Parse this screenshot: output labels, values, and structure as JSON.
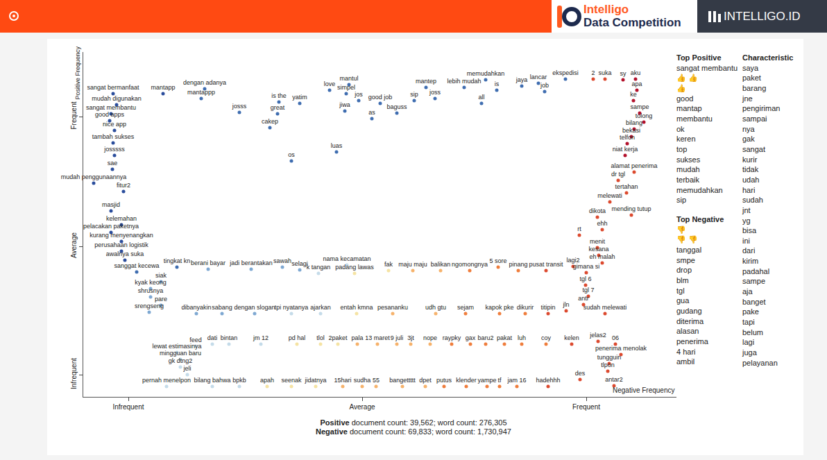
{
  "header": {
    "brand": [
      "Intelligo",
      "Data Competition"
    ],
    "site": "INTELLIGO.ID"
  },
  "chart_data": {
    "type": "scatter",
    "x_label": "Negative Frequency",
    "y_label": "Positive Frequency",
    "xlim": [
      0,
      855
    ],
    "ylim": [
      0,
      497
    ],
    "xticks": [
      {
        "value": 65,
        "label": "Infrequent"
      },
      {
        "value": 402,
        "label": "Average"
      },
      {
        "value": 725,
        "label": "Frequent"
      }
    ],
    "yticks": [
      {
        "value": 32,
        "label": "Infrequent"
      },
      {
        "value": 217,
        "label": "Average"
      },
      {
        "value": 404,
        "label": "Frequent"
      }
    ],
    "grid": false,
    "marker": "circle",
    "points": [
      {
        "label": "sangat bermanfaat",
        "x": 43,
        "y": 437,
        "color": "#2a4d9c"
      },
      {
        "label": "mantapp",
        "x": 115,
        "y": 437,
        "color": "#2a4d9c"
      },
      {
        "label": "dengan adanya",
        "x": 175,
        "y": 444,
        "color": "#3f6db0"
      },
      {
        "label": "mantappp",
        "x": 170,
        "y": 430,
        "color": "#3f6db0"
      },
      {
        "label": "mudah digunakan",
        "x": 48,
        "y": 421,
        "color": "#2a4d9c"
      },
      {
        "label": "sangat membantu",
        "x": 40,
        "y": 408,
        "color": "#2a4d9c"
      },
      {
        "label": "good apps",
        "x": 38,
        "y": 398,
        "color": "#2a4d9c"
      },
      {
        "label": "nice app",
        "x": 45,
        "y": 384,
        "color": "#2a4d9c"
      },
      {
        "label": "tambah sukses",
        "x": 43,
        "y": 366,
        "color": "#2a4d9c"
      },
      {
        "label": "josssss",
        "x": 45,
        "y": 348,
        "color": "#2a4d9c"
      },
      {
        "label": "sae",
        "x": 42,
        "y": 328,
        "color": "#2a4d9c"
      },
      {
        "label": "mudah penggunaannya",
        "x": 15,
        "y": 308,
        "color": "#2a4d9c"
      },
      {
        "label": "fitur2",
        "x": 58,
        "y": 296,
        "color": "#2a4d9c"
      },
      {
        "label": "masjid",
        "x": 40,
        "y": 268,
        "color": "#2a4d9c"
      },
      {
        "label": "kelemahan",
        "x": 55,
        "y": 248,
        "color": "#2a4d9c"
      },
      {
        "label": "pelacakan paketnya",
        "x": 40,
        "y": 237,
        "color": "#2a4d9c"
      },
      {
        "label": "kurang menyenangkan",
        "x": 55,
        "y": 224,
        "color": "#2a4d9c"
      },
      {
        "label": "perusahaan logistik",
        "x": 55,
        "y": 210,
        "color": "#2a4d9c"
      },
      {
        "label": "awalnya suka",
        "x": 60,
        "y": 197,
        "color": "#2a4d9c"
      },
      {
        "label": "sanggat kecewa",
        "x": 77,
        "y": 180,
        "color": "#3f6db0"
      },
      {
        "label": "tingkat kn",
        "x": 135,
        "y": 187,
        "color": "#3f6db0"
      },
      {
        "label": "siak",
        "x": 112,
        "y": 166,
        "color": "#7ea8d2"
      },
      {
        "label": "kyak keong",
        "x": 97,
        "y": 156,
        "color": "#7ea8d2"
      },
      {
        "label": "shrusnya",
        "x": 97,
        "y": 144,
        "color": "#7ea8d2"
      },
      {
        "label": "pare",
        "x": 112,
        "y": 132,
        "color": "#7ea8d2"
      },
      {
        "label": "srengseng",
        "x": 95,
        "y": 122,
        "color": "#7ea8d2"
      },
      {
        "label": "dibanyakin",
        "x": 163,
        "y": 120,
        "color": "#7ea8d2"
      },
      {
        "label": "sabang",
        "x": 200,
        "y": 120,
        "color": "#7ea8d2"
      },
      {
        "label": "dengan slogan",
        "x": 247,
        "y": 120,
        "color": "#7ea8d2"
      },
      {
        "label": "josss",
        "x": 225,
        "y": 410,
        "color": "#3f6db0"
      },
      {
        "label": "is the",
        "x": 282,
        "y": 425,
        "color": "#3f6db0"
      },
      {
        "label": "yatim",
        "x": 312,
        "y": 423,
        "color": "#3f6db0"
      },
      {
        "label": "great",
        "x": 280,
        "y": 408,
        "color": "#3f6db0"
      },
      {
        "label": "love",
        "x": 355,
        "y": 442,
        "color": "#3f6db0"
      },
      {
        "label": "mantul",
        "x": 383,
        "y": 450,
        "color": "#3f6db0"
      },
      {
        "label": "simpel",
        "x": 379,
        "y": 437,
        "color": "#3f6db0"
      },
      {
        "label": "jiwa",
        "x": 377,
        "y": 412,
        "color": "#3f6db0"
      },
      {
        "label": "jos",
        "x": 397,
        "y": 427,
        "color": "#3f6db0"
      },
      {
        "label": "good job",
        "x": 428,
        "y": 423,
        "color": "#3f6db0"
      },
      {
        "label": "as",
        "x": 416,
        "y": 401,
        "color": "#3f6db0"
      },
      {
        "label": "baguss",
        "x": 452,
        "y": 409,
        "color": "#3f6db0"
      },
      {
        "label": "sip",
        "x": 477,
        "y": 427,
        "color": "#3f6db0"
      },
      {
        "label": "joss",
        "x": 507,
        "y": 430,
        "color": "#3f6db0"
      },
      {
        "label": "mantep",
        "x": 494,
        "y": 446,
        "color": "#3f6db0"
      },
      {
        "label": "lebih mudah",
        "x": 549,
        "y": 446,
        "color": "#3f6db0"
      },
      {
        "label": "all",
        "x": 574,
        "y": 423,
        "color": "#3f6db0"
      },
      {
        "label": "memudahkan",
        "x": 580,
        "y": 457,
        "color": "#3f6db0"
      },
      {
        "label": "is",
        "x": 596,
        "y": 442,
        "color": "#3f6db0"
      },
      {
        "label": "jaya",
        "x": 632,
        "y": 448,
        "color": "#3f6db0"
      },
      {
        "label": "lancar",
        "x": 656,
        "y": 452,
        "color": "#3f6db0"
      },
      {
        "label": "job",
        "x": 665,
        "y": 440,
        "color": "#3f6db0"
      },
      {
        "label": "ekspedisi",
        "x": 695,
        "y": 458,
        "color": "#3f6db0"
      },
      {
        "label": "cakep",
        "x": 269,
        "y": 388,
        "color": "#3f6db0"
      },
      {
        "label": "os",
        "x": 300,
        "y": 340,
        "color": "#3f6db0"
      },
      {
        "label": "luas",
        "x": 365,
        "y": 353,
        "color": "#3f6db0"
      },
      {
        "label": "2",
        "x": 735,
        "y": 458,
        "color": "#dc4a2f"
      },
      {
        "label": "suka",
        "x": 752,
        "y": 458,
        "color": "#dc4a2f"
      },
      {
        "label": "sy",
        "x": 778,
        "y": 457,
        "color": "#b3112b"
      },
      {
        "label": "aku",
        "x": 796,
        "y": 458,
        "color": "#b3112b"
      },
      {
        "label": "apa",
        "x": 798,
        "y": 442,
        "color": "#b3112b"
      },
      {
        "label": "ke",
        "x": 793,
        "y": 427,
        "color": "#b3112b"
      },
      {
        "label": "sampe",
        "x": 802,
        "y": 409,
        "color": "#b3112b"
      },
      {
        "label": "tolong",
        "x": 808,
        "y": 396,
        "color": "#b3112b"
      },
      {
        "label": "bilang",
        "x": 794,
        "y": 386,
        "color": "#b3112b"
      },
      {
        "label": "bekasi",
        "x": 790,
        "y": 375,
        "color": "#b3112b"
      },
      {
        "label": "telfon",
        "x": 784,
        "y": 365,
        "color": "#b3112b"
      },
      {
        "label": "niat kerja",
        "x": 781,
        "y": 348,
        "color": "#b3112b"
      },
      {
        "label": "alamat penerima",
        "x": 794,
        "y": 324,
        "color": "#dc4a2f"
      },
      {
        "label": "dr tgl",
        "x": 771,
        "y": 312,
        "color": "#dc4a2f"
      },
      {
        "label": "tertahan",
        "x": 783,
        "y": 294,
        "color": "#dc4a2f"
      },
      {
        "label": "melewati",
        "x": 759,
        "y": 281,
        "color": "#dc4a2f"
      },
      {
        "label": "dikota",
        "x": 741,
        "y": 259,
        "color": "#dc4a2f"
      },
      {
        "label": "mending tutup",
        "x": 790,
        "y": 262,
        "color": "#dc4a2f"
      },
      {
        "label": "ehh",
        "x": 748,
        "y": 241,
        "color": "#dc4a2f"
      },
      {
        "label": "rt",
        "x": 715,
        "y": 233,
        "color": "#dc4a2f"
      },
      {
        "label": "menit",
        "x": 741,
        "y": 215,
        "color": "#dc4a2f"
      },
      {
        "label": "kesana",
        "x": 743,
        "y": 204,
        "color": "#dc4a2f"
      },
      {
        "label": "eh malah",
        "x": 748,
        "y": 193,
        "color": "#dc4a2f"
      },
      {
        "label": "lagi2",
        "x": 706,
        "y": 188,
        "color": "#dc4a2f"
      },
      {
        "label": "gimana si",
        "x": 725,
        "y": 179,
        "color": "#dc4a2f"
      },
      {
        "label": "tgl 6",
        "x": 724,
        "y": 161,
        "color": "#dc4a2f"
      },
      {
        "label": "tgl 7",
        "x": 728,
        "y": 145,
        "color": "#dc4a2f"
      },
      {
        "label": "antr",
        "x": 721,
        "y": 133,
        "color": "#dc4a2f"
      },
      {
        "label": "sudah melewati",
        "x": 752,
        "y": 120,
        "color": "#dc4a2f"
      },
      {
        "label": "jln",
        "x": 696,
        "y": 124,
        "color": "#dc4a2f"
      },
      {
        "label": "titipin",
        "x": 670,
        "y": 120,
        "color": "#dc4a2f"
      },
      {
        "label": "dikurir",
        "x": 637,
        "y": 120,
        "color": "#ef7d3c"
      },
      {
        "label": "kapok pke",
        "x": 600,
        "y": 120,
        "color": "#ef7d3c"
      },
      {
        "label": "sejam",
        "x": 551,
        "y": 120,
        "color": "#ef7d3c"
      },
      {
        "label": "udh gtu",
        "x": 508,
        "y": 120,
        "color": "#f6b26b"
      },
      {
        "label": "pesananku",
        "x": 446,
        "y": 120,
        "color": "#f6b26b"
      },
      {
        "label": "entah kmna",
        "x": 394,
        "y": 120,
        "color": "#f5e3a3"
      },
      {
        "label": "ajarkan",
        "x": 342,
        "y": 120,
        "color": "#c4dbe9"
      },
      {
        "label": "tpi nyatanya",
        "x": 300,
        "y": 120,
        "color": "#c4dbe9"
      },
      {
        "label": "berani bayar",
        "x": 180,
        "y": 184,
        "color": "#7ea8d2"
      },
      {
        "label": "jadi berantakan",
        "x": 242,
        "y": 184,
        "color": "#7ea8d2"
      },
      {
        "label": "sawah",
        "x": 287,
        "y": 187,
        "color": "#7ea8d2"
      },
      {
        "label": "selagi",
        "x": 312,
        "y": 183,
        "color": "#7ea8d2"
      },
      {
        "label": "k tangan",
        "x": 339,
        "y": 178,
        "color": "#c4dbe9"
      },
      {
        "label": "nama kecamatan",
        "x": 380,
        "y": 190,
        "color": "#c4dbe9"
      },
      {
        "label": "padang lawas",
        "x": 391,
        "y": 178,
        "color": "#f5e3a3"
      },
      {
        "label": "fak",
        "x": 440,
        "y": 182,
        "color": "#f5e3a3"
      },
      {
        "label": "maju maju",
        "x": 475,
        "y": 182,
        "color": "#f6b26b"
      },
      {
        "label": "balikan",
        "x": 515,
        "y": 182,
        "color": "#f6b26b"
      },
      {
        "label": "ngomongnya",
        "x": 557,
        "y": 182,
        "color": "#ef7d3c"
      },
      {
        "label": "5 sore",
        "x": 598,
        "y": 187,
        "color": "#ef7d3c"
      },
      {
        "label": "pinang",
        "x": 627,
        "y": 182,
        "color": "#ef7d3c"
      },
      {
        "label": "pusat transit",
        "x": 667,
        "y": 182,
        "color": "#dc4a2f"
      },
      {
        "label": "feed",
        "x": 162,
        "y": 73,
        "color": "#c4dbe9"
      },
      {
        "label": "dati",
        "x": 186,
        "y": 76,
        "color": "#c4dbe9"
      },
      {
        "label": "bintan",
        "x": 210,
        "y": 76,
        "color": "#c4dbe9"
      },
      {
        "label": "jm 12",
        "x": 256,
        "y": 76,
        "color": "#c4dbe9"
      },
      {
        "label": "pd hal",
        "x": 308,
        "y": 76,
        "color": "#f5e3a3"
      },
      {
        "label": "tlol",
        "x": 342,
        "y": 76,
        "color": "#f5e3a3"
      },
      {
        "label": "2paket",
        "x": 367,
        "y": 76,
        "color": "#f5e3a3"
      },
      {
        "label": "pala",
        "x": 395,
        "y": 76,
        "color": "#f6b26b"
      },
      {
        "label": "13 maret",
        "x": 424,
        "y": 76,
        "color": "#f6b26b"
      },
      {
        "label": "9 juli",
        "x": 452,
        "y": 76,
        "color": "#f6b26b"
      },
      {
        "label": "3jt",
        "x": 472,
        "y": 76,
        "color": "#f6b26b"
      },
      {
        "label": "nope",
        "x": 500,
        "y": 76,
        "color": "#f6b26b"
      },
      {
        "label": "raypky",
        "x": 531,
        "y": 76,
        "color": "#ef7d3c"
      },
      {
        "label": "gax",
        "x": 558,
        "y": 76,
        "color": "#ef7d3c"
      },
      {
        "label": "baru2",
        "x": 580,
        "y": 76,
        "color": "#ef7d3c"
      },
      {
        "label": "pakat",
        "x": 607,
        "y": 76,
        "color": "#ef7d3c"
      },
      {
        "label": "luh",
        "x": 632,
        "y": 76,
        "color": "#ef7d3c"
      },
      {
        "label": "coy",
        "x": 667,
        "y": 76,
        "color": "#ef7d3c"
      },
      {
        "label": "kelen",
        "x": 704,
        "y": 76,
        "color": "#dc4a2f"
      },
      {
        "label": "jelas2",
        "x": 742,
        "y": 80,
        "color": "#dc4a2f"
      },
      {
        "label": "06",
        "x": 767,
        "y": 76,
        "color": "#dc4a2f"
      },
      {
        "label": "lewat estimasinya",
        "x": 135,
        "y": 64,
        "color": "#c4dbe9"
      },
      {
        "label": "mingguan baru",
        "x": 140,
        "y": 54,
        "color": "#c4dbe9"
      },
      {
        "label": "gk dtng2",
        "x": 140,
        "y": 43,
        "color": "#c4dbe9"
      },
      {
        "label": "jeli",
        "x": 150,
        "y": 32,
        "color": "#c4dbe9"
      },
      {
        "label": "penerima menolak",
        "x": 775,
        "y": 61,
        "color": "#dc4a2f"
      },
      {
        "label": "tungguin",
        "x": 758,
        "y": 48,
        "color": "#dc4a2f"
      },
      {
        "label": "tlpon",
        "x": 756,
        "y": 37,
        "color": "#dc4a2f"
      },
      {
        "label": "des",
        "x": 716,
        "y": 25,
        "color": "#dc4a2f"
      },
      {
        "label": "antar2",
        "x": 765,
        "y": 16,
        "color": "#dc4a2f"
      },
      {
        "label": "pernah menelpon",
        "x": 120,
        "y": 15,
        "color": "#c4dbe9"
      },
      {
        "label": "bilang bahwa",
        "x": 186,
        "y": 15,
        "color": "#c4dbe9"
      },
      {
        "label": "bpkb",
        "x": 225,
        "y": 15,
        "color": "#c4dbe9"
      },
      {
        "label": "apah",
        "x": 265,
        "y": 15,
        "color": "#f5e3a3"
      },
      {
        "label": "seenak",
        "x": 300,
        "y": 15,
        "color": "#f5e3a3"
      },
      {
        "label": "jidatnya",
        "x": 335,
        "y": 15,
        "color": "#f5e3a3"
      },
      {
        "label": "15hari",
        "x": 374,
        "y": 15,
        "color": "#f6b26b"
      },
      {
        "label": "sudha",
        "x": 402,
        "y": 15,
        "color": "#f6b26b"
      },
      {
        "label": "55",
        "x": 422,
        "y": 15,
        "color": "#f6b26b"
      },
      {
        "label": "bangettttt",
        "x": 460,
        "y": 15,
        "color": "#f6b26b"
      },
      {
        "label": "dpet",
        "x": 493,
        "y": 15,
        "color": "#f6b26b"
      },
      {
        "label": "putus",
        "x": 520,
        "y": 15,
        "color": "#ef7d3c"
      },
      {
        "label": "klender",
        "x": 552,
        "y": 15,
        "color": "#ef7d3c"
      },
      {
        "label": "yampe",
        "x": 582,
        "y": 15,
        "color": "#ef7d3c"
      },
      {
        "label": "tf",
        "x": 600,
        "y": 15,
        "color": "#ef7d3c"
      },
      {
        "label": "jam 16",
        "x": 625,
        "y": 15,
        "color": "#ef7d3c"
      },
      {
        "label": "hadehhh",
        "x": 670,
        "y": 15,
        "color": "#dc4a2f"
      }
    ]
  },
  "lists": [
    {
      "title": "Top Positive",
      "items": [
        "sangat membantu",
        "👍 👍",
        "👍",
        "good",
        "mantap",
        "membantu",
        "ok",
        "keren",
        "top",
        "sukses",
        "mudah",
        "terbaik",
        "memudahkan",
        "sip"
      ]
    },
    {
      "title": "Top Negative",
      "items": [
        "👎",
        "👎 👎",
        "tanggal",
        "smpe",
        "drop",
        "blm",
        "tgl",
        "gua",
        "gudang",
        "diterima",
        "alasan",
        "penerima",
        "4 hari",
        "ambil"
      ]
    },
    {
      "title": "Characteristic",
      "items": [
        "saya",
        "paket",
        "barang",
        "jne",
        "pengiriman",
        "sampai",
        "nya",
        "gak",
        "sangat",
        "kurir",
        "tidak",
        "udah",
        "hari",
        "sudah",
        "jnt",
        "yg",
        "bisa",
        "ini",
        "dari",
        "kirim",
        "padahal",
        "sampe",
        "aja",
        "banget",
        "pake",
        "tapi",
        "belum",
        "lagi",
        "juga",
        "pelayanan"
      ]
    }
  ],
  "footer": [
    {
      "bold": "Positive",
      "text": "document count: 39,562; word count: 276,305"
    },
    {
      "bold": "Negative",
      "text": "document count: 69,833; word count: 1,730,947"
    }
  ]
}
